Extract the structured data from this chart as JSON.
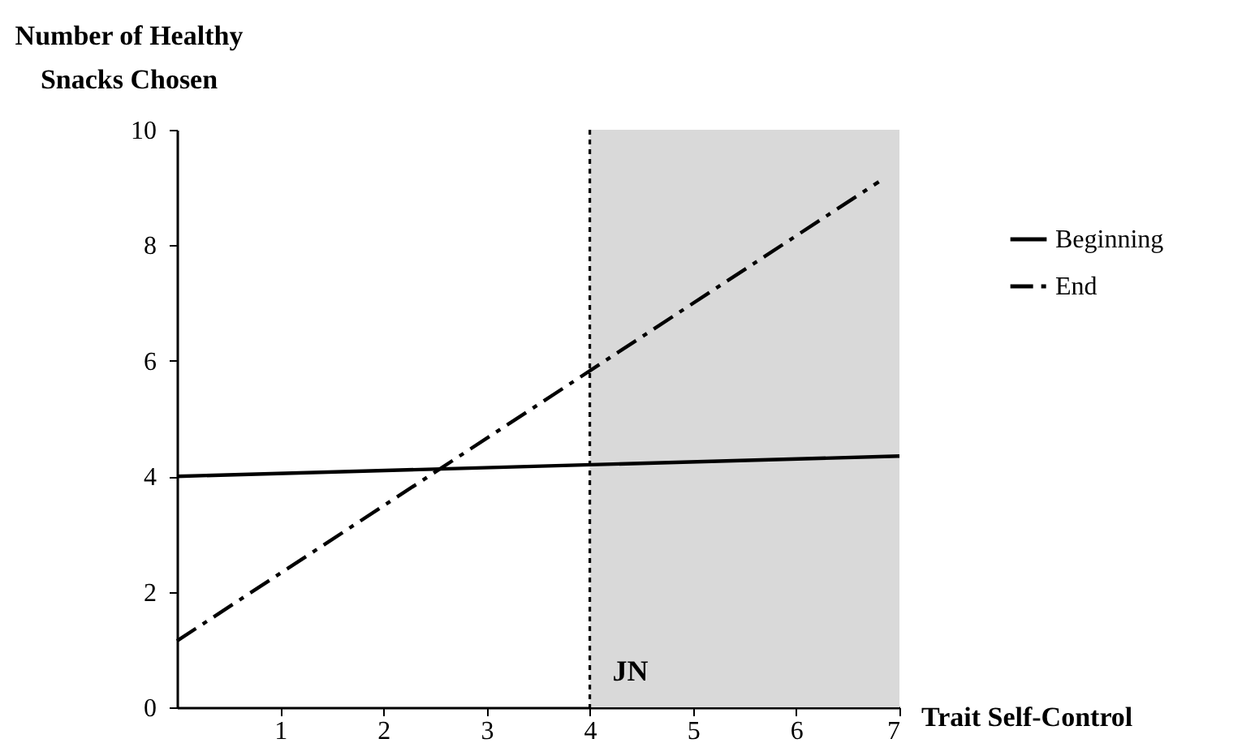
{
  "chart_data": {
    "type": "line",
    "xlabel": "Trait Self-Control",
    "ylabel": "Number of Healthy Snacks Chosen",
    "xlim": [
      0,
      7
    ],
    "xticks": [
      1,
      2,
      3,
      4,
      5,
      6,
      7
    ],
    "ylim": [
      0,
      10
    ],
    "yticks": [
      0,
      2,
      4,
      6,
      8,
      10
    ],
    "series": [
      {
        "name": "Beginning",
        "color": "#000000",
        "line_style": "solid",
        "x": [
          0,
          7
        ],
        "values": [
          4.0,
          4.35
        ]
      },
      {
        "name": "End",
        "color": "#000000",
        "line_style": "dashed",
        "x": [
          0,
          6.8
        ],
        "values": [
          1.15,
          9.1
        ]
      }
    ],
    "bands": [
      {
        "axis": "x",
        "from": 4,
        "to": 7,
        "color": "#d9d9d9"
      }
    ],
    "ref_lines": [
      {
        "axis": "x",
        "value": 4,
        "line_style": "dotted",
        "color": "#000000"
      }
    ],
    "annotations": [
      {
        "text": "JN",
        "x": 4,
        "y": 0.6
      }
    ],
    "grid": false,
    "legend": "right",
    "marker": "none"
  }
}
